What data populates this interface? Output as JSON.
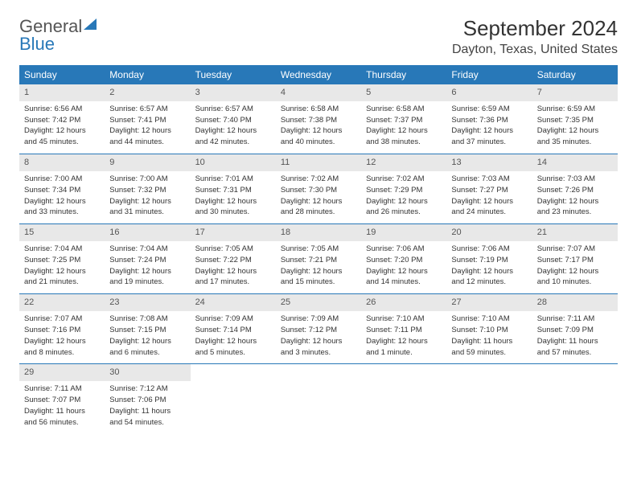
{
  "logo": {
    "part1": "General",
    "part2": "Blue"
  },
  "title": "September 2024",
  "location": "Dayton, Texas, United States",
  "colors": {
    "header_bg": "#2878b8",
    "header_text": "#ffffff",
    "daynum_bg": "#e8e8e8",
    "row_border": "#2878b8",
    "text": "#333333"
  },
  "day_names": [
    "Sunday",
    "Monday",
    "Tuesday",
    "Wednesday",
    "Thursday",
    "Friday",
    "Saturday"
  ],
  "weeks": [
    [
      {
        "n": "1",
        "sunrise": "Sunrise: 6:56 AM",
        "sunset": "Sunset: 7:42 PM",
        "dl1": "Daylight: 12 hours",
        "dl2": "and 45 minutes."
      },
      {
        "n": "2",
        "sunrise": "Sunrise: 6:57 AM",
        "sunset": "Sunset: 7:41 PM",
        "dl1": "Daylight: 12 hours",
        "dl2": "and 44 minutes."
      },
      {
        "n": "3",
        "sunrise": "Sunrise: 6:57 AM",
        "sunset": "Sunset: 7:40 PM",
        "dl1": "Daylight: 12 hours",
        "dl2": "and 42 minutes."
      },
      {
        "n": "4",
        "sunrise": "Sunrise: 6:58 AM",
        "sunset": "Sunset: 7:38 PM",
        "dl1": "Daylight: 12 hours",
        "dl2": "and 40 minutes."
      },
      {
        "n": "5",
        "sunrise": "Sunrise: 6:58 AM",
        "sunset": "Sunset: 7:37 PM",
        "dl1": "Daylight: 12 hours",
        "dl2": "and 38 minutes."
      },
      {
        "n": "6",
        "sunrise": "Sunrise: 6:59 AM",
        "sunset": "Sunset: 7:36 PM",
        "dl1": "Daylight: 12 hours",
        "dl2": "and 37 minutes."
      },
      {
        "n": "7",
        "sunrise": "Sunrise: 6:59 AM",
        "sunset": "Sunset: 7:35 PM",
        "dl1": "Daylight: 12 hours",
        "dl2": "and 35 minutes."
      }
    ],
    [
      {
        "n": "8",
        "sunrise": "Sunrise: 7:00 AM",
        "sunset": "Sunset: 7:34 PM",
        "dl1": "Daylight: 12 hours",
        "dl2": "and 33 minutes."
      },
      {
        "n": "9",
        "sunrise": "Sunrise: 7:00 AM",
        "sunset": "Sunset: 7:32 PM",
        "dl1": "Daylight: 12 hours",
        "dl2": "and 31 minutes."
      },
      {
        "n": "10",
        "sunrise": "Sunrise: 7:01 AM",
        "sunset": "Sunset: 7:31 PM",
        "dl1": "Daylight: 12 hours",
        "dl2": "and 30 minutes."
      },
      {
        "n": "11",
        "sunrise": "Sunrise: 7:02 AM",
        "sunset": "Sunset: 7:30 PM",
        "dl1": "Daylight: 12 hours",
        "dl2": "and 28 minutes."
      },
      {
        "n": "12",
        "sunrise": "Sunrise: 7:02 AM",
        "sunset": "Sunset: 7:29 PM",
        "dl1": "Daylight: 12 hours",
        "dl2": "and 26 minutes."
      },
      {
        "n": "13",
        "sunrise": "Sunrise: 7:03 AM",
        "sunset": "Sunset: 7:27 PM",
        "dl1": "Daylight: 12 hours",
        "dl2": "and 24 minutes."
      },
      {
        "n": "14",
        "sunrise": "Sunrise: 7:03 AM",
        "sunset": "Sunset: 7:26 PM",
        "dl1": "Daylight: 12 hours",
        "dl2": "and 23 minutes."
      }
    ],
    [
      {
        "n": "15",
        "sunrise": "Sunrise: 7:04 AM",
        "sunset": "Sunset: 7:25 PM",
        "dl1": "Daylight: 12 hours",
        "dl2": "and 21 minutes."
      },
      {
        "n": "16",
        "sunrise": "Sunrise: 7:04 AM",
        "sunset": "Sunset: 7:24 PM",
        "dl1": "Daylight: 12 hours",
        "dl2": "and 19 minutes."
      },
      {
        "n": "17",
        "sunrise": "Sunrise: 7:05 AM",
        "sunset": "Sunset: 7:22 PM",
        "dl1": "Daylight: 12 hours",
        "dl2": "and 17 minutes."
      },
      {
        "n": "18",
        "sunrise": "Sunrise: 7:05 AM",
        "sunset": "Sunset: 7:21 PM",
        "dl1": "Daylight: 12 hours",
        "dl2": "and 15 minutes."
      },
      {
        "n": "19",
        "sunrise": "Sunrise: 7:06 AM",
        "sunset": "Sunset: 7:20 PM",
        "dl1": "Daylight: 12 hours",
        "dl2": "and 14 minutes."
      },
      {
        "n": "20",
        "sunrise": "Sunrise: 7:06 AM",
        "sunset": "Sunset: 7:19 PM",
        "dl1": "Daylight: 12 hours",
        "dl2": "and 12 minutes."
      },
      {
        "n": "21",
        "sunrise": "Sunrise: 7:07 AM",
        "sunset": "Sunset: 7:17 PM",
        "dl1": "Daylight: 12 hours",
        "dl2": "and 10 minutes."
      }
    ],
    [
      {
        "n": "22",
        "sunrise": "Sunrise: 7:07 AM",
        "sunset": "Sunset: 7:16 PM",
        "dl1": "Daylight: 12 hours",
        "dl2": "and 8 minutes."
      },
      {
        "n": "23",
        "sunrise": "Sunrise: 7:08 AM",
        "sunset": "Sunset: 7:15 PM",
        "dl1": "Daylight: 12 hours",
        "dl2": "and 6 minutes."
      },
      {
        "n": "24",
        "sunrise": "Sunrise: 7:09 AM",
        "sunset": "Sunset: 7:14 PM",
        "dl1": "Daylight: 12 hours",
        "dl2": "and 5 minutes."
      },
      {
        "n": "25",
        "sunrise": "Sunrise: 7:09 AM",
        "sunset": "Sunset: 7:12 PM",
        "dl1": "Daylight: 12 hours",
        "dl2": "and 3 minutes."
      },
      {
        "n": "26",
        "sunrise": "Sunrise: 7:10 AM",
        "sunset": "Sunset: 7:11 PM",
        "dl1": "Daylight: 12 hours",
        "dl2": "and 1 minute."
      },
      {
        "n": "27",
        "sunrise": "Sunrise: 7:10 AM",
        "sunset": "Sunset: 7:10 PM",
        "dl1": "Daylight: 11 hours",
        "dl2": "and 59 minutes."
      },
      {
        "n": "28",
        "sunrise": "Sunrise: 7:11 AM",
        "sunset": "Sunset: 7:09 PM",
        "dl1": "Daylight: 11 hours",
        "dl2": "and 57 minutes."
      }
    ],
    [
      {
        "n": "29",
        "sunrise": "Sunrise: 7:11 AM",
        "sunset": "Sunset: 7:07 PM",
        "dl1": "Daylight: 11 hours",
        "dl2": "and 56 minutes."
      },
      {
        "n": "30",
        "sunrise": "Sunrise: 7:12 AM",
        "sunset": "Sunset: 7:06 PM",
        "dl1": "Daylight: 11 hours",
        "dl2": "and 54 minutes."
      },
      null,
      null,
      null,
      null,
      null
    ]
  ]
}
